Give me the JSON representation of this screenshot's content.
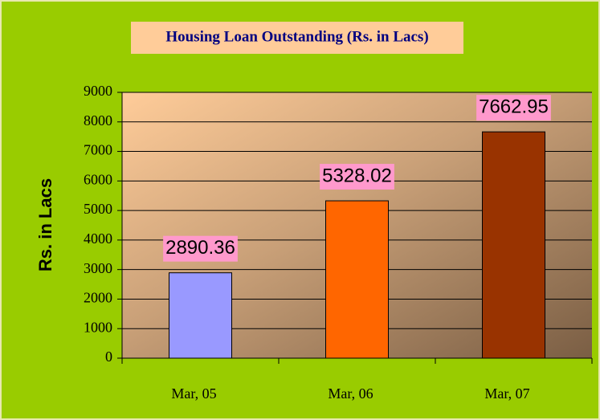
{
  "chart_data": {
    "type": "bar",
    "title": "Housing Loan Outstanding (Rs. in Lacs)",
    "y_label": "Rs. in Lacs",
    "categories": [
      "Mar, 05",
      "Mar, 06",
      "Mar, 07"
    ],
    "values": [
      2890.36,
      5328.02,
      7662.95
    ],
    "colors": [
      "#9999ff",
      "#ff6600",
      "#993300"
    ],
    "ylim": [
      0,
      9000
    ],
    "yticks": [
      0,
      1000,
      2000,
      3000,
      4000,
      5000,
      6000,
      7000,
      8000,
      9000
    ],
    "grid": true
  }
}
